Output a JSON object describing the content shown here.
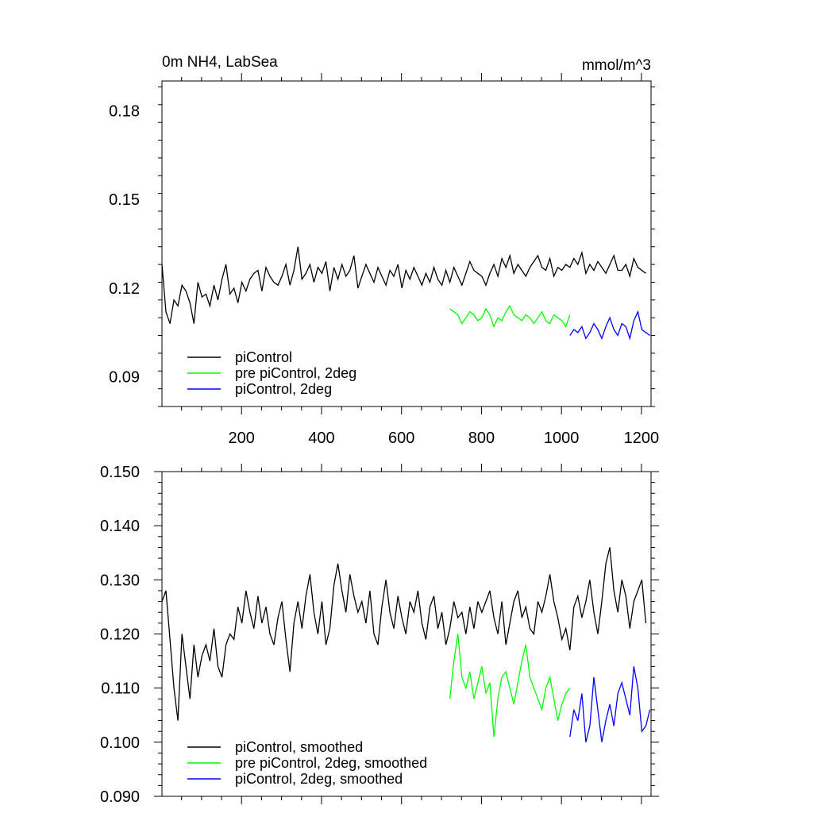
{
  "chart_data": [
    {
      "type": "line",
      "title": "0m NH4, LabSea",
      "units_label": "mmol/m^3",
      "xlim": [
        1,
        1224
      ],
      "ylim": [
        0.08,
        0.19
      ],
      "x_ticks": [
        200,
        400,
        600,
        800,
        1000,
        1200
      ],
      "x_tick_labels": [
        "200",
        "400",
        "600",
        "800",
        "1000",
        "1200"
      ],
      "y_ticks": [
        0.09,
        0.12,
        0.15,
        0.18
      ],
      "y_tick_labels": [
        "0.09",
        "0.12",
        "0.15",
        "0.18"
      ],
      "grid": false,
      "legend_position": "bottom-left",
      "series": [
        {
          "name": "piControl",
          "color": "#000000",
          "x_start": 1,
          "x_step": 10,
          "values": [
            0.128,
            0.112,
            0.108,
            0.116,
            0.114,
            0.121,
            0.119,
            0.115,
            0.108,
            0.122,
            0.117,
            0.118,
            0.114,
            0.121,
            0.116,
            0.123,
            0.128,
            0.118,
            0.12,
            0.115,
            0.122,
            0.119,
            0.123,
            0.125,
            0.126,
            0.119,
            0.127,
            0.124,
            0.122,
            0.121,
            0.124,
            0.128,
            0.121,
            0.126,
            0.134,
            0.123,
            0.125,
            0.128,
            0.122,
            0.127,
            0.125,
            0.129,
            0.119,
            0.127,
            0.123,
            0.128,
            0.124,
            0.126,
            0.131,
            0.12,
            0.124,
            0.128,
            0.125,
            0.122,
            0.127,
            0.124,
            0.121,
            0.126,
            0.124,
            0.128,
            0.12,
            0.126,
            0.123,
            0.127,
            0.124,
            0.121,
            0.125,
            0.122,
            0.127,
            0.123,
            0.121,
            0.126,
            0.122,
            0.127,
            0.124,
            0.121,
            0.125,
            0.129,
            0.126,
            0.125,
            0.124,
            0.121,
            0.125,
            0.128,
            0.124,
            0.13,
            0.127,
            0.131,
            0.125,
            0.128,
            0.126,
            0.124,
            0.127,
            0.129,
            0.131,
            0.127,
            0.126,
            0.13,
            0.124,
            0.127,
            0.126,
            0.128,
            0.127,
            0.13,
            0.128,
            0.132,
            0.125,
            0.128,
            0.126,
            0.129,
            0.127,
            0.125,
            0.128,
            0.131,
            0.126,
            0.126,
            0.128,
            0.124,
            0.13,
            0.127,
            0.126,
            0.125
          ]
        },
        {
          "name": "pre piControl, 2deg",
          "color": "#00ff00",
          "x_start": 721,
          "x_step": 10,
          "values": [
            0.113,
            0.112,
            0.111,
            0.108,
            0.11,
            0.112,
            0.111,
            0.109,
            0.11,
            0.113,
            0.111,
            0.107,
            0.11,
            0.109,
            0.112,
            0.114,
            0.111,
            0.11,
            0.109,
            0.111,
            0.11,
            0.108,
            0.11,
            0.112,
            0.109,
            0.108,
            0.111,
            0.11,
            0.109,
            0.107,
            0.111
          ]
        },
        {
          "name": "piControl, 2deg",
          "color": "#0000ff",
          "x_start": 1021,
          "x_step": 10,
          "values": [
            0.104,
            0.106,
            0.105,
            0.107,
            0.103,
            0.105,
            0.108,
            0.106,
            0.103,
            0.107,
            0.11,
            0.106,
            0.104,
            0.108,
            0.107,
            0.103,
            0.109,
            0.112,
            0.106,
            0.105,
            0.104
          ]
        }
      ]
    },
    {
      "type": "line",
      "title": "",
      "xlim": [
        1,
        1224
      ],
      "ylim": [
        0.09,
        0.15
      ],
      "x_ticks": [
        200,
        400,
        600,
        800,
        1000,
        1200
      ],
      "x_tick_labels": [],
      "y_ticks": [
        0.09,
        0.1,
        0.11,
        0.12,
        0.13,
        0.14,
        0.15
      ],
      "y_tick_labels": [
        "0.090",
        "0.100",
        "0.110",
        "0.120",
        "0.130",
        "0.140",
        "0.150"
      ],
      "grid": false,
      "legend_position": "bottom-left",
      "series": [
        {
          "name": "piControl, smoothed",
          "color": "#000000",
          "x_start": 1,
          "x_step": 10,
          "values": [
            0.126,
            0.128,
            0.119,
            0.11,
            0.104,
            0.12,
            0.114,
            0.108,
            0.118,
            0.112,
            0.116,
            0.118,
            0.115,
            0.121,
            0.114,
            0.112,
            0.118,
            0.12,
            0.119,
            0.125,
            0.122,
            0.128,
            0.124,
            0.121,
            0.127,
            0.122,
            0.125,
            0.12,
            0.118,
            0.123,
            0.126,
            0.119,
            0.113,
            0.122,
            0.126,
            0.121,
            0.127,
            0.131,
            0.124,
            0.12,
            0.126,
            0.118,
            0.121,
            0.129,
            0.133,
            0.128,
            0.124,
            0.131,
            0.127,
            0.124,
            0.126,
            0.122,
            0.128,
            0.12,
            0.118,
            0.125,
            0.13,
            0.124,
            0.121,
            0.127,
            0.123,
            0.12,
            0.126,
            0.124,
            0.128,
            0.122,
            0.119,
            0.125,
            0.127,
            0.121,
            0.124,
            0.118,
            0.121,
            0.126,
            0.123,
            0.124,
            0.12,
            0.125,
            0.121,
            0.126,
            0.124,
            0.126,
            0.128,
            0.123,
            0.12,
            0.126,
            0.118,
            0.122,
            0.126,
            0.128,
            0.123,
            0.125,
            0.121,
            0.12,
            0.126,
            0.124,
            0.127,
            0.131,
            0.126,
            0.123,
            0.119,
            0.121,
            0.117,
            0.125,
            0.127,
            0.123,
            0.126,
            0.13,
            0.124,
            0.12,
            0.126,
            0.133,
            0.136,
            0.128,
            0.124,
            0.13,
            0.127,
            0.121,
            0.126,
            0.128,
            0.13,
            0.122
          ]
        },
        {
          "name": "pre piControl, 2deg, smoothed",
          "color": "#00ff00",
          "x_start": 721,
          "x_step": 10,
          "values": [
            0.108,
            0.115,
            0.12,
            0.112,
            0.11,
            0.113,
            0.108,
            0.111,
            0.114,
            0.109,
            0.111,
            0.101,
            0.108,
            0.112,
            0.113,
            0.11,
            0.107,
            0.111,
            0.115,
            0.118,
            0.112,
            0.11,
            0.108,
            0.106,
            0.11,
            0.112,
            0.108,
            0.104,
            0.107,
            0.109,
            0.11
          ]
        },
        {
          "name": "piControl, 2deg, smoothed",
          "color": "#0000ff",
          "x_start": 1021,
          "x_step": 10,
          "values": [
            0.101,
            0.106,
            0.104,
            0.109,
            0.1,
            0.103,
            0.112,
            0.106,
            0.1,
            0.104,
            0.107,
            0.103,
            0.109,
            0.111,
            0.108,
            0.105,
            0.114,
            0.11,
            0.102,
            0.103,
            0.106
          ]
        }
      ]
    }
  ]
}
